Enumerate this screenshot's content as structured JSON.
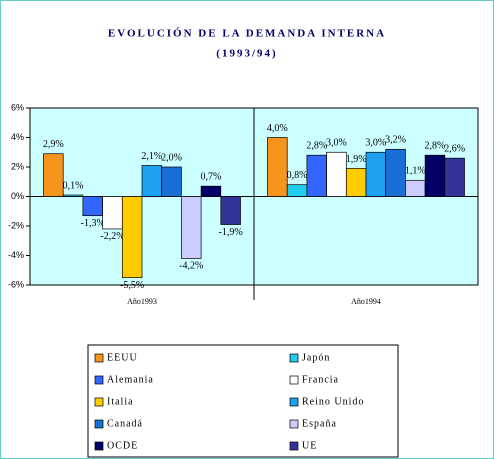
{
  "chart_data": {
    "type": "bar",
    "title": "EVOLUCIÓN DE LA DEMANDA INTERNA",
    "subtitle": "(1993/94)",
    "categories": [
      "Año1993",
      "Año1994"
    ],
    "series": [
      {
        "name": "EEUU",
        "color": "#f7941d",
        "values": [
          2.9,
          4.0
        ],
        "value_labels": [
          "2,9%",
          "4,0%"
        ]
      },
      {
        "name": "Japón",
        "color": "#22ccee",
        "values": [
          0.1,
          0.8
        ],
        "value_labels": [
          "0,1%",
          "0,8%"
        ]
      },
      {
        "name": "Alemania",
        "color": "#3366ff",
        "values": [
          -1.3,
          2.8
        ],
        "value_labels": [
          "-1,3%",
          "2,8%"
        ]
      },
      {
        "name": "Francia",
        "color": "#ffffff",
        "values": [
          -2.2,
          3.0
        ],
        "value_labels": [
          "-2,2%",
          "3,0%"
        ]
      },
      {
        "name": "Italia",
        "color": "#ffcc00",
        "values": [
          -5.5,
          1.9
        ],
        "value_labels": [
          "-5,5%",
          "1,9%"
        ]
      },
      {
        "name": "Reino Unido",
        "color": "#1ea0f0",
        "values": [
          2.1,
          3.0
        ],
        "value_labels": [
          "2,1%",
          "3,0%"
        ]
      },
      {
        "name": "Canadá",
        "color": "#1a6fd6",
        "values": [
          2.0,
          3.2
        ],
        "value_labels": [
          "2,0%",
          "3,2%"
        ]
      },
      {
        "name": "España",
        "color": "#ccccff",
        "values": [
          -4.2,
          1.1
        ],
        "value_labels": [
          "-4,2%",
          "1,1%"
        ]
      },
      {
        "name": "OCDE",
        "color": "#000066",
        "values": [
          0.7,
          2.8
        ],
        "value_labels": [
          "0,7%",
          "2,8%"
        ]
      },
      {
        "name": "UE",
        "color": "#333399",
        "values": [
          -1.9,
          2.6
        ],
        "value_labels": [
          "-1,9%",
          "2,6%"
        ]
      }
    ],
    "ylim": [
      -6,
      6
    ],
    "yticks": [
      {
        "value": -6,
        "label": "-6%"
      },
      {
        "value": -4,
        "label": "-4%"
      },
      {
        "value": -2,
        "label": "-2%"
      },
      {
        "value": 0,
        "label": "0%"
      },
      {
        "value": 2,
        "label": "2%"
      },
      {
        "value": 4,
        "label": "4%"
      },
      {
        "value": 6,
        "label": "6%"
      }
    ]
  }
}
